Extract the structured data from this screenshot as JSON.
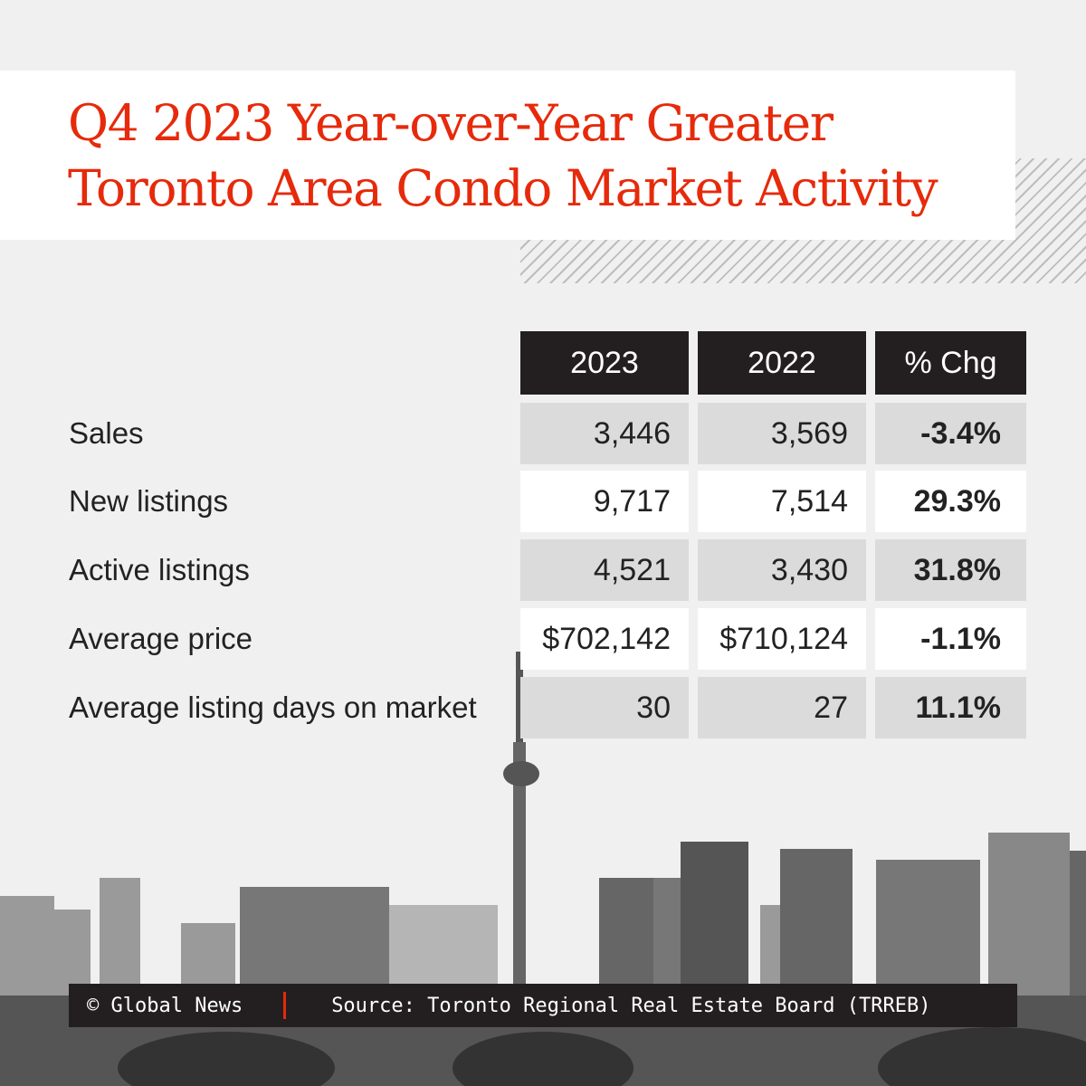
{
  "title": {
    "line1": "Q4 2023 Year-over-Year Greater",
    "line2": "Toronto Area Condo Market Activity"
  },
  "accent_color": "#e62a0b",
  "chart_data": {
    "type": "table",
    "columns": [
      "2023",
      "2022",
      "% Chg"
    ],
    "rows": [
      {
        "label": "Sales",
        "values": [
          "3,446",
          "3,569",
          "-3.4%"
        ]
      },
      {
        "label": "New listings",
        "values": [
          "9,717",
          "7,514",
          "29.3%"
        ]
      },
      {
        "label": "Active listings",
        "values": [
          "4,521",
          "3,430",
          "31.8%"
        ]
      },
      {
        "label": "Average price",
        "values": [
          "$702,142",
          "$710,124",
          "-1.1%"
        ]
      },
      {
        "label": "Average listing days on market",
        "values": [
          "30",
          "27",
          "11.1%"
        ]
      }
    ]
  },
  "footer": {
    "credit": "© Global News",
    "source": "Source: Toronto Regional Real Estate Board (TRREB)"
  }
}
